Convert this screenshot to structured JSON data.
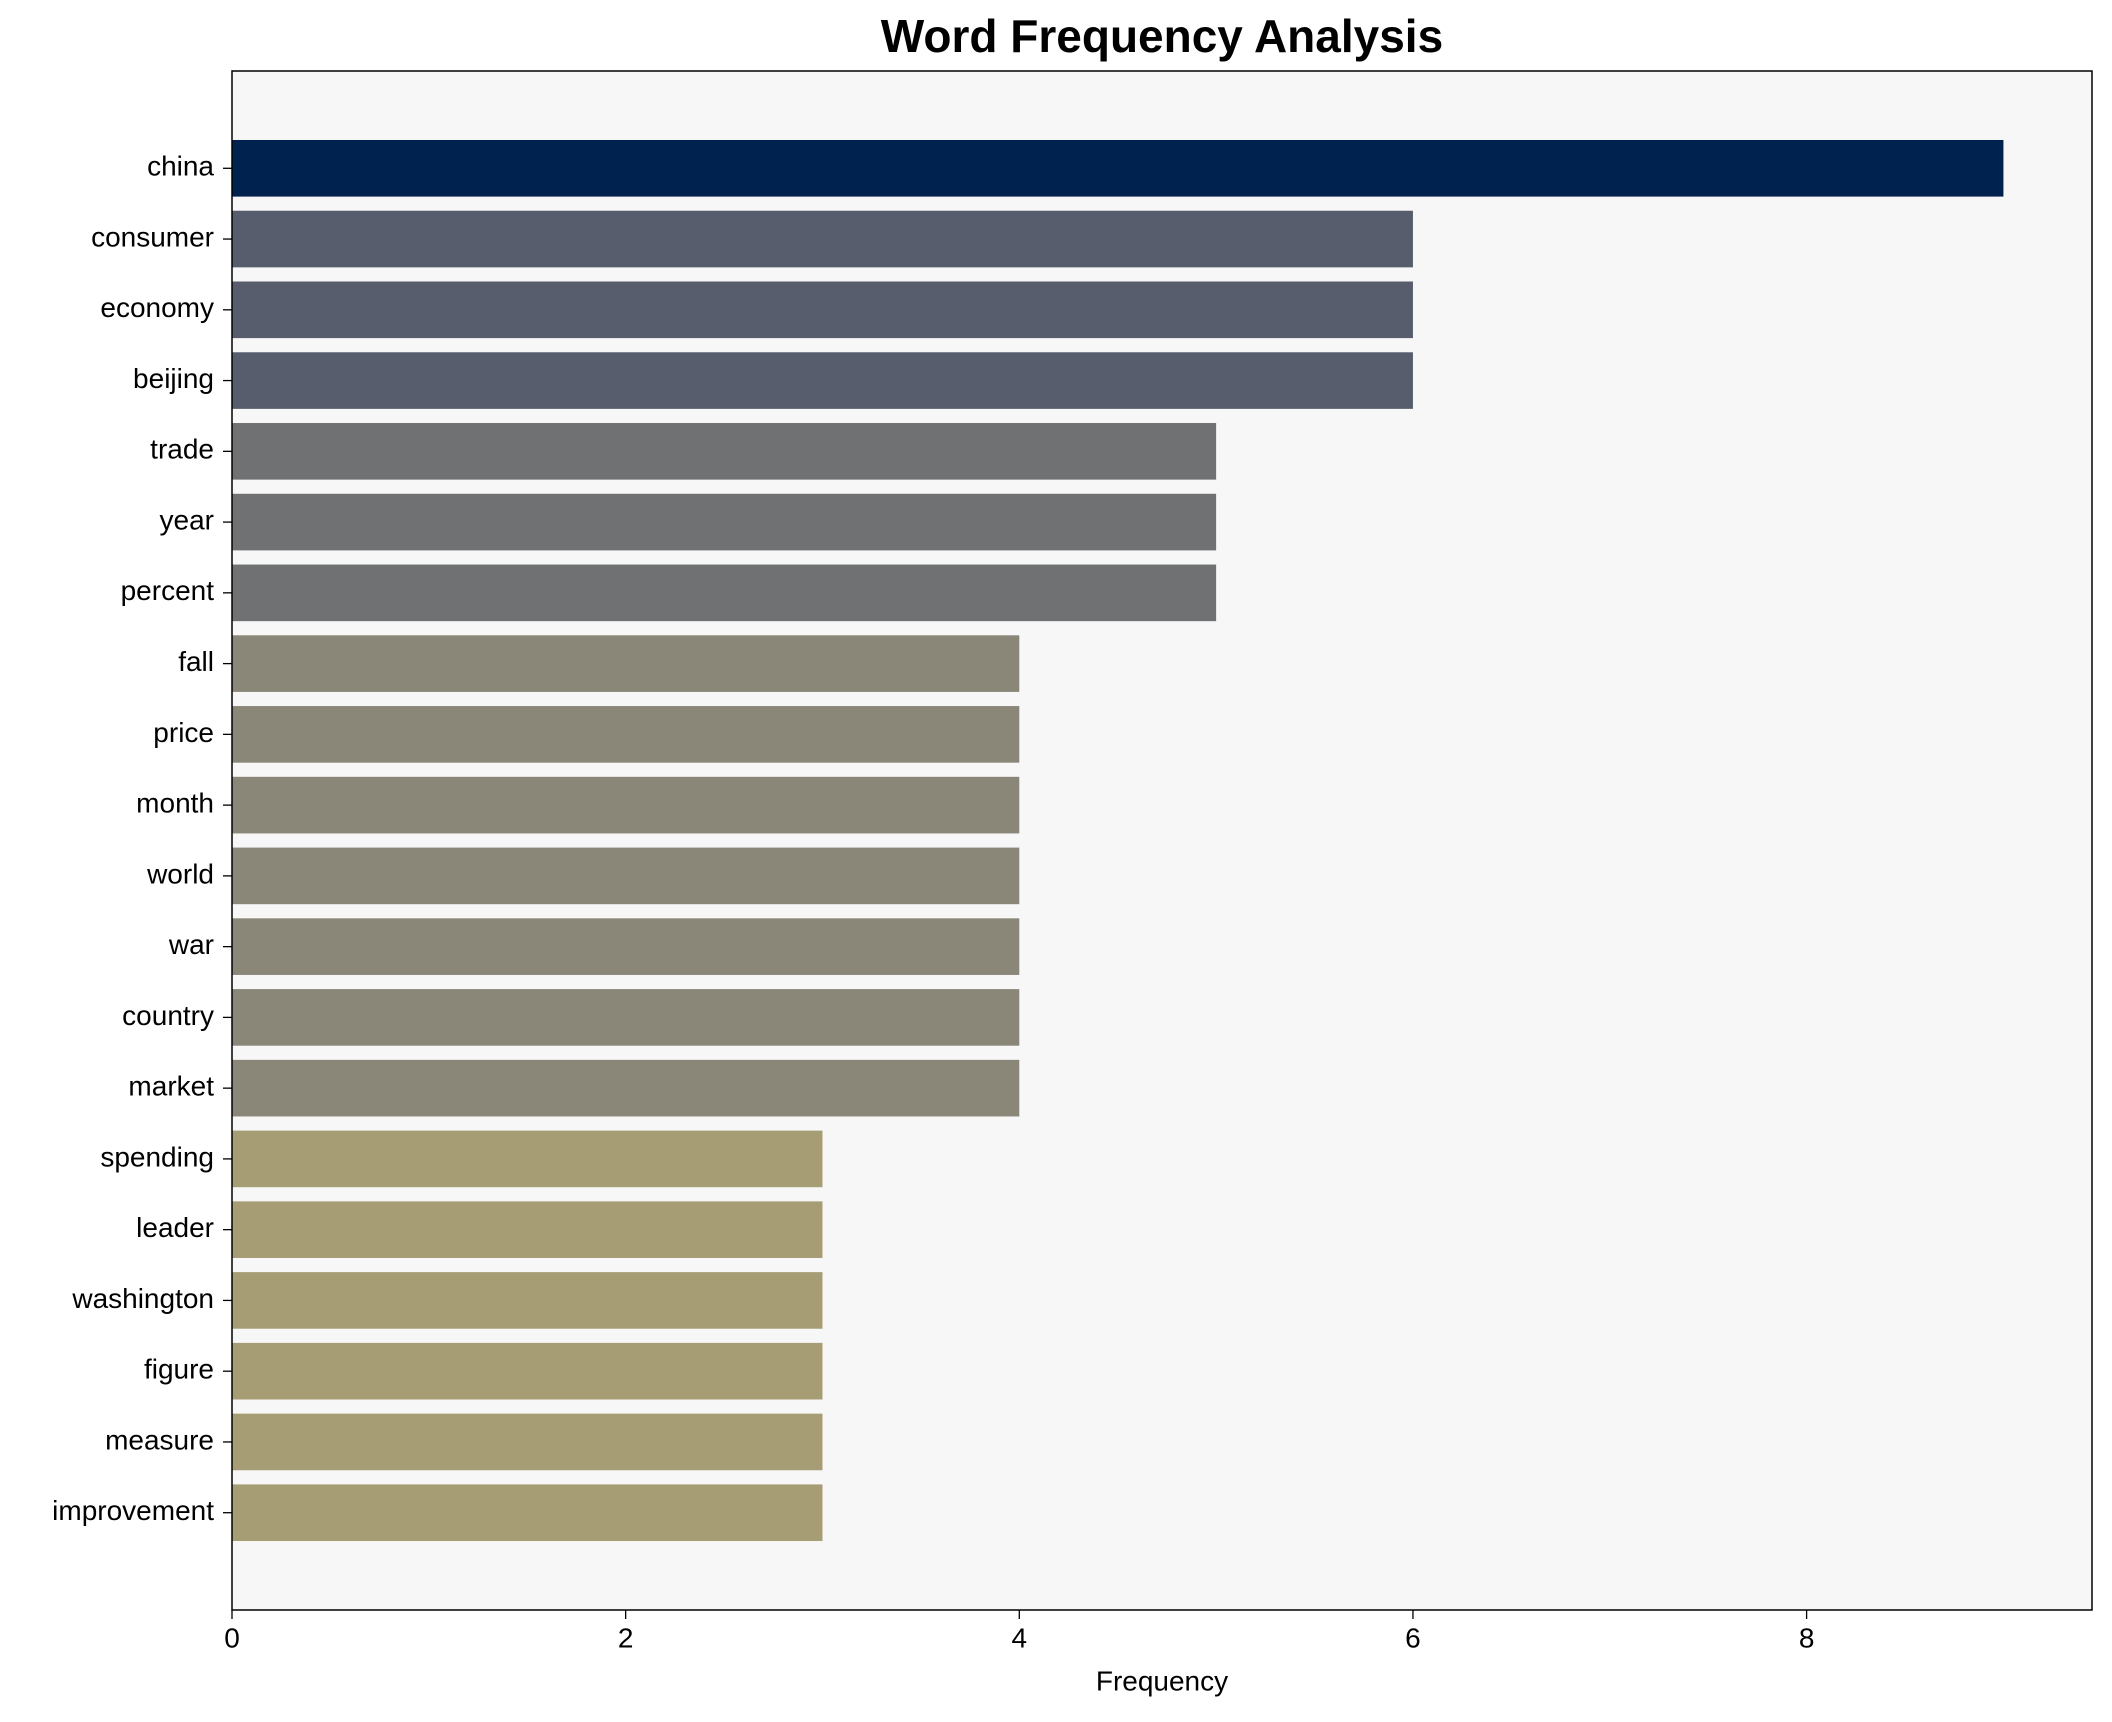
{
  "chart_data": {
    "type": "barh",
    "title": "Word Frequency Analysis",
    "x_label": "Frequency",
    "categories": [
      "china",
      "consumer",
      "economy",
      "beijing",
      "trade",
      "year",
      "percent",
      "fall",
      "price",
      "month",
      "world",
      "war",
      "country",
      "market",
      "spending",
      "leader",
      "washington",
      "figure",
      "measure",
      "improvement"
    ],
    "values": [
      9,
      6,
      6,
      6,
      5,
      5,
      5,
      4,
      4,
      4,
      4,
      4,
      4,
      4,
      3,
      3,
      3,
      3,
      3,
      3
    ],
    "colors": [
      "#00224e",
      "#575d6d",
      "#575d6d",
      "#575d6d",
      "#707173",
      "#707173",
      "#707173",
      "#8a8779",
      "#8a8779",
      "#8a8779",
      "#8a8779",
      "#8a8779",
      "#8a8779",
      "#8a8779",
      "#a69d75",
      "#a69d75",
      "#a69d75",
      "#a69d75",
      "#a69d75",
      "#a69d75"
    ],
    "xlim": [
      0,
      9.45
    ],
    "xticks": [
      0,
      2,
      4,
      6,
      8
    ],
    "grid": false
  }
}
